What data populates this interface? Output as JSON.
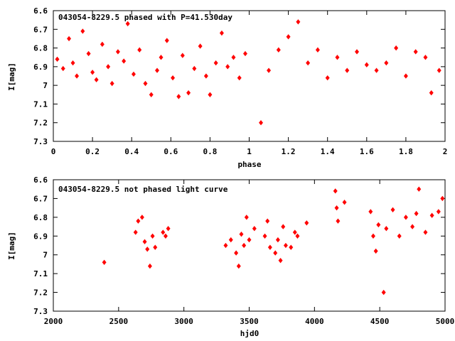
{
  "chart_data": [
    {
      "type": "scatter",
      "title": "043054-8229.5 phased with P=41.530day",
      "xlabel": "phase",
      "ylabel": "I[mag]",
      "xlim": [
        0,
        2
      ],
      "ylim": [
        6.6,
        7.3
      ],
      "y_inverted": true,
      "xticks": [
        "0",
        "0.2",
        "0.4",
        "0.6",
        "0.8",
        "1",
        "1.2",
        "1.4",
        "1.6",
        "1.8",
        "2"
      ],
      "yticks": [
        "6.6",
        "6.7",
        "6.8",
        "6.9",
        "7",
        "7.1",
        "7.2",
        "7.3"
      ],
      "marker_color": "#ff0000",
      "grid": false,
      "series": [
        {
          "x": [
            0.02,
            0.05,
            0.08,
            0.1,
            0.12,
            0.15,
            0.18,
            0.2,
            0.22,
            0.25,
            0.28,
            0.3,
            0.33,
            0.36,
            0.38,
            0.41,
            0.44,
            0.47,
            0.5,
            0.53,
            0.55,
            0.58,
            0.61,
            0.64,
            0.66,
            0.69,
            0.72,
            0.75,
            0.78,
            0.8,
            0.83,
            0.86,
            0.89,
            0.92,
            0.95,
            0.98,
            1.06,
            1.1,
            1.15,
            1.2,
            1.25,
            1.3,
            1.35,
            1.4,
            1.45,
            1.5,
            1.55,
            1.6,
            1.65,
            1.7,
            1.75,
            1.8,
            1.85,
            1.9,
            1.93,
            1.97
          ],
          "y": [
            6.86,
            6.91,
            6.75,
            6.88,
            6.95,
            6.71,
            6.83,
            6.93,
            6.97,
            6.78,
            6.9,
            6.99,
            6.82,
            6.87,
            6.67,
            6.94,
            6.81,
            6.99,
            7.05,
            6.92,
            6.85,
            6.76,
            6.96,
            7.06,
            6.84,
            7.04,
            6.91,
            6.79,
            6.95,
            7.05,
            6.88,
            6.72,
            6.9,
            6.85,
            6.96,
            6.83,
            7.2,
            6.92,
            6.81,
            6.74,
            6.66,
            6.88,
            6.81,
            6.96,
            6.85,
            6.92,
            6.82,
            6.89,
            6.92,
            6.88,
            6.8,
            6.95,
            6.82,
            6.85,
            7.04,
            6.92
          ]
        }
      ]
    },
    {
      "type": "scatter",
      "title": "043054-8229.5 not phased light curve",
      "xlabel": "hjd0",
      "ylabel": "I[mag]",
      "xlim": [
        2000,
        5000
      ],
      "ylim": [
        6.6,
        7.3
      ],
      "y_inverted": true,
      "xticks": [
        "2000",
        "2500",
        "3000",
        "3500",
        "4000",
        "4500",
        "5000"
      ],
      "yticks": [
        "6.6",
        "6.7",
        "6.8",
        "6.9",
        "7",
        "7.1",
        "7.2",
        "7.3"
      ],
      "marker_color": "#ff0000",
      "grid": false,
      "series": [
        {
          "x": [
            2390,
            2630,
            2650,
            2680,
            2700,
            2720,
            2740,
            2760,
            2780,
            2840,
            2860,
            2880,
            3320,
            3360,
            3400,
            3420,
            3440,
            3460,
            3480,
            3500,
            3540,
            3620,
            3640,
            3660,
            3700,
            3720,
            3740,
            3760,
            3780,
            3820,
            3850,
            3870,
            3940,
            4160,
            4170,
            4180,
            4230,
            4430,
            4450,
            4470,
            4490,
            4530,
            4550,
            4600,
            4650,
            4700,
            4750,
            4780,
            4800,
            4850,
            4900,
            4950,
            4980
          ],
          "y": [
            7.04,
            6.88,
            6.82,
            6.8,
            6.93,
            6.97,
            7.06,
            6.9,
            6.96,
            6.88,
            6.9,
            6.86,
            6.95,
            6.92,
            6.99,
            7.06,
            6.89,
            6.95,
            6.8,
            6.92,
            6.86,
            6.9,
            6.82,
            6.96,
            6.99,
            6.92,
            7.03,
            6.85,
            6.95,
            6.96,
            6.88,
            6.9,
            6.83,
            6.66,
            6.75,
            6.82,
            6.72,
            6.77,
            6.9,
            6.98,
            6.84,
            7.2,
            6.86,
            6.76,
            6.9,
            6.8,
            6.85,
            6.78,
            6.65,
            6.88,
            6.79,
            6.77,
            6.7
          ]
        }
      ]
    }
  ]
}
